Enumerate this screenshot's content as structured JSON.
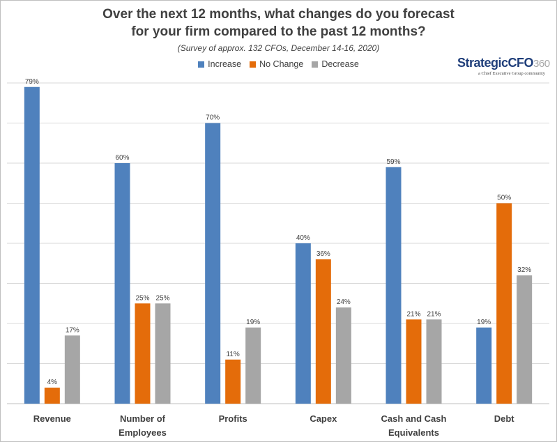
{
  "title_line1": "Over the next 12 months, what changes do you forecast",
  "title_line2": "for your firm compared to the past 12 months?",
  "subtitle": "(Survey of approx. 132 CFOs, December 14-16, 2020)",
  "logo": {
    "strategic": "Strategic",
    "cfo": "CFO",
    "suffix": "360",
    "tagline": "a Chief Executive Group community"
  },
  "chart_data": {
    "type": "bar",
    "categories": [
      [
        "Revenue"
      ],
      [
        "Number of",
        "Employees"
      ],
      [
        "Profits"
      ],
      [
        "Capex"
      ],
      [
        "Cash and Cash",
        "Equivalents"
      ],
      [
        "Debt"
      ]
    ],
    "series": [
      {
        "name": "Increase",
        "color": "#4f81bd",
        "values": [
          79,
          60,
          70,
          40,
          59,
          19
        ]
      },
      {
        "name": "No Change",
        "color": "#e46c0a",
        "values": [
          4,
          25,
          11,
          36,
          21,
          50
        ]
      },
      {
        "name": "Decrease",
        "color": "#a6a6a6",
        "values": [
          17,
          25,
          19,
          24,
          21,
          32
        ]
      }
    ],
    "ylim": [
      0,
      80
    ],
    "gridlines": true,
    "value_suffix": "%",
    "legend_position": "top"
  }
}
